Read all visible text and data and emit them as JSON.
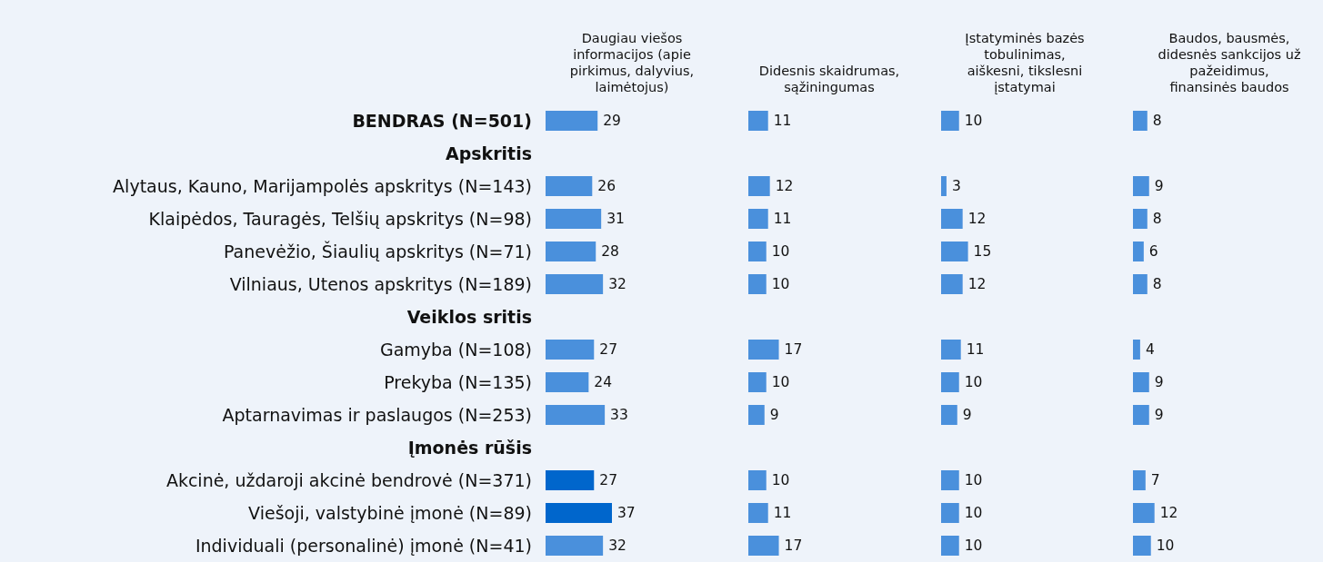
{
  "chart_data": [
    {
      "type": "bar",
      "orientation": "horizontal",
      "title": "Daugiau viešos informacijos (apie pirkimus, dalyvius, laimėtojus)",
      "categories": [
        "BENDRAS (N=501)",
        "Apskritis",
        "Alytaus, Kauno, Marijampolės apskritys (N=143)",
        "Klaipėdos, Tauragės, Telšių apskritys (N=98)",
        "Panevėžio, Šiaulių apskritys (N=71)",
        "Vilniaus, Utenos apskritys (N=189)",
        "Veiklos sritis",
        "Gamyba (N=108)",
        "Prekyba (N=135)",
        "Aptarnavimas ir paslaugos (N=253)",
        "Įmonės rūšis",
        "Akcinė, uždaroji akcinė bendrovė (N=371)",
        "Viešoji, valstybinė įmonė (N=89)",
        "Individuali (personalinė) įmonė (N=41)"
      ],
      "values": [
        29,
        null,
        26,
        31,
        28,
        32,
        null,
        27,
        24,
        33,
        null,
        27,
        37,
        32
      ],
      "colors": [
        "#4a90dc",
        null,
        "#4a90dc",
        "#4a90dc",
        "#4a90dc",
        "#4a90dc",
        null,
        "#4a90dc",
        "#4a90dc",
        "#4a90dc",
        null,
        "#0066cc",
        "#0066cc",
        "#4a90dc"
      ],
      "data_labels": true,
      "tick_labels": "y"
    },
    {
      "type": "bar",
      "orientation": "horizontal",
      "title": "Didesnis skaidrumas, sąžiningumas",
      "categories": [
        null,
        null,
        null,
        null,
        null,
        null,
        null,
        null,
        null,
        null,
        null,
        null,
        null,
        null
      ],
      "values": [
        11,
        null,
        12,
        11,
        10,
        10,
        null,
        17,
        10,
        9,
        null,
        10,
        11,
        17
      ],
      "color": "#4a90dc",
      "data_labels": true
    },
    {
      "type": "bar",
      "orientation": "horizontal",
      "title": "Įstatyminės bazės tobulinimas, aiškesni, tikslesni įstatymai",
      "categories": [
        null,
        null,
        null,
        null,
        null,
        null,
        null,
        null,
        null,
        null,
        null,
        null,
        null,
        null
      ],
      "values": [
        10,
        null,
        3,
        12,
        15,
        12,
        null,
        11,
        10,
        9,
        null,
        10,
        10,
        10
      ],
      "color": "#4a90dc",
      "data_labels": true
    },
    {
      "type": "bar",
      "orientation": "horizontal",
      "title": "Baudos, bausmės, didesnės sankcijos už pažeidimus, finansinės baudos",
      "categories": [
        null,
        null,
        null,
        null,
        null,
        null,
        null,
        null,
        null,
        null,
        null,
        null,
        null,
        null
      ],
      "values": [
        8,
        null,
        9,
        8,
        6,
        8,
        null,
        4,
        9,
        9,
        null,
        7,
        12,
        10
      ],
      "color": "#4a90dc",
      "data_labels": true
    }
  ]
}
